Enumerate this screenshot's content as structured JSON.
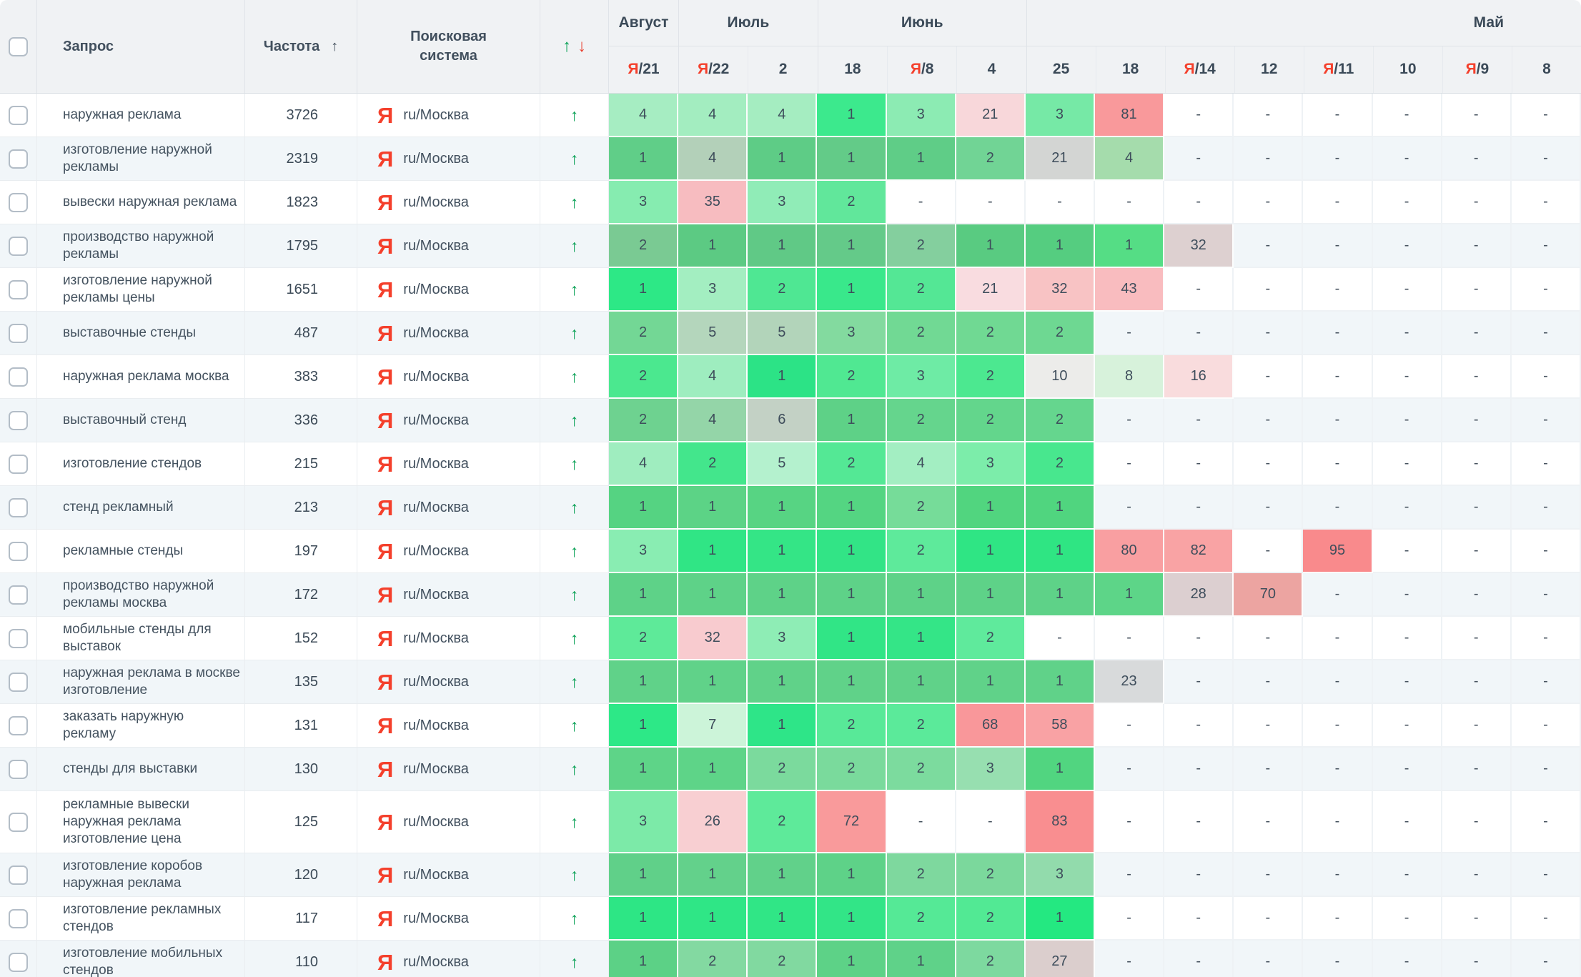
{
  "header": {
    "query": "Запрос",
    "frequency": "Частота",
    "freq_sort_icon": "↑",
    "engine": "Поисковая система",
    "trend_up_icon": "↑",
    "trend_down_icon": "↓"
  },
  "yandex_mark": "Я",
  "colors": {
    "yandex_red": "#f4402c",
    "trend_up_green": "#0aa156",
    "trend_down_red": "#e8402f",
    "header_bg": "#f0f2f4",
    "row_stripe": "#f1f6f9",
    "header_text": "#3b4a58",
    "cell_text": "#3e4d5b"
  },
  "months": [
    {
      "label": "Август",
      "dates": [
        {
          "day": "21",
          "ya": true
        }
      ]
    },
    {
      "label": "Июль",
      "dates": [
        {
          "day": "22",
          "ya": true
        },
        {
          "day": "2"
        }
      ]
    },
    {
      "label": "Июнь",
      "dates": [
        {
          "day": "18"
        },
        {
          "day": "8",
          "ya": true
        },
        {
          "day": "4"
        }
      ]
    },
    {
      "label": "Май",
      "align": "right",
      "dates": [
        {
          "day": "25"
        },
        {
          "day": "18"
        },
        {
          "day": "14",
          "ya": true
        },
        {
          "day": "12"
        },
        {
          "day": "11",
          "ya": true
        },
        {
          "day": "10"
        },
        {
          "day": "9",
          "ya": true
        },
        {
          "day": "8"
        }
      ]
    }
  ],
  "rows": [
    {
      "query": "наружная реклама",
      "frequency": "3726",
      "engine": "ru/Москва",
      "trend": "up",
      "cells": [
        [
          "4",
          "#a6edc2"
        ],
        [
          "4",
          "#a3edc0"
        ],
        [
          "4",
          "#a5edc1"
        ],
        [
          "1",
          "#3ce98d"
        ],
        [
          "3",
          "#8cebb3"
        ],
        [
          "21",
          "#f8d7da"
        ],
        [
          "3",
          "#76e9a6"
        ],
        [
          "81",
          "#f9999b"
        ],
        [
          "-"
        ],
        [
          "-"
        ],
        [
          "-"
        ],
        [
          "-"
        ],
        [
          "-"
        ],
        [
          "-"
        ]
      ]
    },
    {
      "query": "изготовление наружной рекламы",
      "frequency": "2319",
      "engine": "ru/Москва",
      "trend": "up",
      "cells": [
        [
          "1",
          "#60ce88"
        ],
        [
          "4",
          "#b3d0b9"
        ],
        [
          "1",
          "#5ecc86"
        ],
        [
          "1",
          "#63cb88"
        ],
        [
          "1",
          "#5fcd87"
        ],
        [
          "2",
          "#71d495"
        ],
        [
          "21",
          "#d3d5d3"
        ],
        [
          "4",
          "#a5dcac"
        ],
        [
          "-"
        ],
        [
          "-"
        ],
        [
          "-"
        ],
        [
          "-"
        ],
        [
          "-"
        ],
        [
          "-"
        ]
      ]
    },
    {
      "query": "вывески наружная реклама",
      "frequency": "1823",
      "engine": "ru/Москва",
      "trend": "up",
      "cells": [
        [
          "3",
          "#86ecb0"
        ],
        [
          "35",
          "#f7bcc0"
        ],
        [
          "3",
          "#90ecb7"
        ],
        [
          "2",
          "#61e79b"
        ],
        [
          "-"
        ],
        [
          "-"
        ],
        [
          "-"
        ],
        [
          "-"
        ],
        [
          "-"
        ],
        [
          "-"
        ],
        [
          "-"
        ],
        [
          "-"
        ],
        [
          "-"
        ],
        [
          "-"
        ]
      ]
    },
    {
      "query": "производство наружной рекламы",
      "frequency": "1795",
      "engine": "ru/Москва",
      "trend": "up",
      "cells": [
        [
          "2",
          "#7aca93"
        ],
        [
          "1",
          "#5cca83"
        ],
        [
          "1",
          "#60c986"
        ],
        [
          "1",
          "#64ca89"
        ],
        [
          "2",
          "#84cf9e"
        ],
        [
          "1",
          "#59cb81"
        ],
        [
          "1",
          "#55cd80"
        ],
        [
          "1",
          "#55dd85"
        ],
        [
          "32",
          "#ddd0d0"
        ],
        [
          "-"
        ],
        [
          "-"
        ],
        [
          "-"
        ],
        [
          "-"
        ],
        [
          "-"
        ]
      ]
    },
    {
      "query": "изготовление наружной рекламы цены",
      "frequency": "1651",
      "engine": "ru/Москва",
      "trend": "up",
      "cells": [
        [
          "1",
          "#2de886"
        ],
        [
          "3",
          "#a3eec1"
        ],
        [
          "2",
          "#4fe793"
        ],
        [
          "1",
          "#39e88b"
        ],
        [
          "2",
          "#54e795"
        ],
        [
          "21",
          "#f9dce0"
        ],
        [
          "32",
          "#f8c3c4"
        ],
        [
          "43",
          "#f9bcbf"
        ],
        [
          "-"
        ],
        [
          "-"
        ],
        [
          "-"
        ],
        [
          "-"
        ],
        [
          "-"
        ],
        [
          "-"
        ]
      ]
    },
    {
      "query": "выставочные стенды",
      "frequency": "487",
      "engine": "ru/Москва",
      "trend": "up",
      "cells": [
        [
          "2",
          "#73d795"
        ],
        [
          "5",
          "#b4d6bc"
        ],
        [
          "5",
          "#b2d4ba"
        ],
        [
          "3",
          "#83da9f"
        ],
        [
          "2",
          "#71d994"
        ],
        [
          "2",
          "#70d993"
        ],
        [
          "2",
          "#6ed892"
        ],
        [
          "-"
        ],
        [
          "-"
        ],
        [
          "-"
        ],
        [
          "-"
        ],
        [
          "-"
        ],
        [
          "-"
        ],
        [
          "-"
        ]
      ]
    },
    {
      "query": "наружная реклама москва",
      "frequency": "383",
      "engine": "ru/Москва",
      "trend": "up",
      "cells": [
        [
          "2",
          "#4be88f"
        ],
        [
          "4",
          "#9eedbf"
        ],
        [
          "1",
          "#2ce386"
        ],
        [
          "2",
          "#50e892"
        ],
        [
          "3",
          "#6eeba5"
        ],
        [
          "2",
          "#4ce890"
        ],
        [
          "10",
          "#ececea"
        ],
        [
          "8",
          "#d7f2db"
        ],
        [
          "16",
          "#f9dcdd"
        ],
        [
          "-"
        ],
        [
          "-"
        ],
        [
          "-"
        ],
        [
          "-"
        ],
        [
          "-"
        ]
      ]
    },
    {
      "query": "выставочный стенд",
      "frequency": "336",
      "engine": "ru/Москва",
      "trend": "up",
      "cells": [
        [
          "2",
          "#6ed290"
        ],
        [
          "4",
          "#94d5a8"
        ],
        [
          "6",
          "#c3d1c5"
        ],
        [
          "1",
          "#5ed187"
        ],
        [
          "2",
          "#65d58d"
        ],
        [
          "2",
          "#63d68c"
        ],
        [
          "2",
          "#65d68e"
        ],
        [
          "-"
        ],
        [
          "-"
        ],
        [
          "-"
        ],
        [
          "-"
        ],
        [
          "-"
        ],
        [
          "-"
        ],
        [
          "-"
        ]
      ]
    },
    {
      "query": "изготовление стендов",
      "frequency": "215",
      "engine": "ru/Москва",
      "trend": "up",
      "cells": [
        [
          "4",
          "#9fedbf"
        ],
        [
          "2",
          "#43e68c"
        ],
        [
          "5",
          "#b4f1ce"
        ],
        [
          "2",
          "#54e895"
        ],
        [
          "4",
          "#a3eec2"
        ],
        [
          "3",
          "#7cedaa"
        ],
        [
          "2",
          "#48e78e"
        ],
        [
          "-"
        ],
        [
          "-"
        ],
        [
          "-"
        ],
        [
          "-"
        ],
        [
          "-"
        ],
        [
          "-"
        ],
        [
          "-"
        ]
      ]
    },
    {
      "query": "стенд рекламный",
      "frequency": "213",
      "engine": "ru/Москва",
      "trend": "up",
      "cells": [
        [
          "1",
          "#55d382"
        ],
        [
          "1",
          "#5cd386"
        ],
        [
          "1",
          "#57d483"
        ],
        [
          "1",
          "#54d582"
        ],
        [
          "2",
          "#76dc99"
        ],
        [
          "1",
          "#51d57f"
        ],
        [
          "1",
          "#50d57f"
        ],
        [
          "-"
        ],
        [
          "-"
        ],
        [
          "-"
        ],
        [
          "-"
        ],
        [
          "-"
        ],
        [
          "-"
        ],
        [
          "-"
        ]
      ]
    },
    {
      "query": "рекламные стенды",
      "frequency": "197",
      "engine": "ru/Москва",
      "trend": "up",
      "cells": [
        [
          "3",
          "#89edb2"
        ],
        [
          "1",
          "#30e585"
        ],
        [
          "1",
          "#34e586"
        ],
        [
          "1",
          "#32e486"
        ],
        [
          "2",
          "#5eea9b"
        ],
        [
          "1",
          "#2fe584"
        ],
        [
          "1",
          "#2fe583"
        ],
        [
          "80",
          "#f99fa1"
        ],
        [
          "82",
          "#f9a3a4"
        ],
        [
          "-"
        ],
        [
          "95",
          "#f98a8c"
        ],
        [
          "-"
        ],
        [
          "-"
        ],
        [
          "-"
        ]
      ]
    },
    {
      "query": "производство наружной рекламы москва",
      "frequency": "172",
      "engine": "ru/Москва",
      "trend": "up",
      "cells": [
        [
          "1",
          "#5ed288"
        ],
        [
          "1",
          "#5ed288"
        ],
        [
          "1",
          "#5ed288"
        ],
        [
          "1",
          "#5ed288"
        ],
        [
          "1",
          "#5ed288"
        ],
        [
          "1",
          "#5ed288"
        ],
        [
          "1",
          "#5ed288"
        ],
        [
          "1",
          "#5dd588"
        ],
        [
          "28",
          "#dccfd0"
        ],
        [
          "70",
          "#eca4a1"
        ],
        [
          "-"
        ],
        [
          "-"
        ],
        [
          "-"
        ],
        [
          "-"
        ]
      ]
    },
    {
      "query": "мобильные стенды для выставок",
      "frequency": "152",
      "engine": "ru/Москва",
      "trend": "up",
      "cells": [
        [
          "2",
          "#5eea99"
        ],
        [
          "32",
          "#f8cbcf"
        ],
        [
          "3",
          "#8eedb5"
        ],
        [
          "1",
          "#31e586"
        ],
        [
          "1",
          "#34e587"
        ],
        [
          "2",
          "#5fea9c"
        ],
        [
          "-"
        ],
        [
          "-"
        ],
        [
          "-"
        ],
        [
          "-"
        ],
        [
          "-"
        ],
        [
          "-"
        ],
        [
          "-"
        ],
        [
          "-"
        ]
      ]
    },
    {
      "query": "наружная реклама в москве изготовление",
      "frequency": "135",
      "engine": "ru/Москва",
      "trend": "up",
      "cells": [
        [
          "1",
          "#60d289"
        ],
        [
          "1",
          "#60d289"
        ],
        [
          "1",
          "#60d289"
        ],
        [
          "1",
          "#60d289"
        ],
        [
          "1",
          "#60d289"
        ],
        [
          "1",
          "#60d289"
        ],
        [
          "1",
          "#60d289"
        ],
        [
          "23",
          "#d8dadb"
        ],
        [
          "-"
        ],
        [
          "-"
        ],
        [
          "-"
        ],
        [
          "-"
        ],
        [
          "-"
        ],
        [
          "-"
        ]
      ]
    },
    {
      "query": "заказать наружную рекламу",
      "frequency": "131",
      "engine": "ru/Москва",
      "trend": "up",
      "cells": [
        [
          "1",
          "#2de887"
        ],
        [
          "7",
          "#ccf4d9"
        ],
        [
          "1",
          "#2ee588"
        ],
        [
          "2",
          "#58e998"
        ],
        [
          "2",
          "#5bea9a"
        ],
        [
          "68",
          "#f9979a"
        ],
        [
          "58",
          "#f9a2a4"
        ],
        [
          "-"
        ],
        [
          "-"
        ],
        [
          "-"
        ],
        [
          "-"
        ],
        [
          "-"
        ],
        [
          "-"
        ],
        [
          "-"
        ]
      ]
    },
    {
      "query": "стенды для выставки",
      "frequency": "130",
      "engine": "ru/Москва",
      "trend": "up",
      "cells": [
        [
          "1",
          "#5ed488"
        ],
        [
          "1",
          "#5ed488"
        ],
        [
          "2",
          "#7bda9d"
        ],
        [
          "2",
          "#7ada9c"
        ],
        [
          "2",
          "#7cdb9e"
        ],
        [
          "3",
          "#97dfb0"
        ],
        [
          "1",
          "#51d580"
        ],
        [
          "-"
        ],
        [
          "-"
        ],
        [
          "-"
        ],
        [
          "-"
        ],
        [
          "-"
        ],
        [
          "-"
        ],
        [
          "-"
        ]
      ]
    },
    {
      "query": "рекламные вывески наружная реклама изготовление цена",
      "frequency": "125",
      "engine": "ru/Москва",
      "trend": "up",
      "tall": true,
      "cells": [
        [
          "3",
          "#7ceaa8"
        ],
        [
          "26",
          "#f8cfd2"
        ],
        [
          "2",
          "#5eea9a"
        ],
        [
          "72",
          "#f99a9b"
        ],
        [
          "-"
        ],
        [
          "-"
        ],
        [
          "83",
          "#f98e90"
        ],
        [
          "-"
        ],
        [
          "-"
        ],
        [
          "-"
        ],
        [
          "-"
        ],
        [
          "-"
        ],
        [
          "-"
        ],
        [
          "-"
        ]
      ]
    },
    {
      "query": "изготовление коробов наружная реклама",
      "frequency": "120",
      "engine": "ru/Москва",
      "trend": "up",
      "cells": [
        [
          "1",
          "#60d089"
        ],
        [
          "1",
          "#63d18b"
        ],
        [
          "1",
          "#61d18a"
        ],
        [
          "1",
          "#5ed288"
        ],
        [
          "2",
          "#7ed89e"
        ],
        [
          "2",
          "#7bd89c"
        ],
        [
          "3",
          "#92dbac"
        ],
        [
          "-"
        ],
        [
          "-"
        ],
        [
          "-"
        ],
        [
          "-"
        ],
        [
          "-"
        ],
        [
          "-"
        ],
        [
          "-"
        ]
      ]
    },
    {
      "query": "изготовление рекламных стендов",
      "frequency": "117",
      "engine": "ru/Москва",
      "trend": "up",
      "cells": [
        [
          "1",
          "#2de685"
        ],
        [
          "1",
          "#2fe686"
        ],
        [
          "1",
          "#30e686"
        ],
        [
          "1",
          "#32e587"
        ],
        [
          "2",
          "#55e996"
        ],
        [
          "2",
          "#52e994"
        ],
        [
          "1",
          "#24e881"
        ],
        [
          "-"
        ],
        [
          "-"
        ],
        [
          "-"
        ],
        [
          "-"
        ],
        [
          "-"
        ],
        [
          "-"
        ],
        [
          "-"
        ]
      ]
    },
    {
      "query": "изготовление мобильных стендов",
      "frequency": "110",
      "engine": "ru/Москва",
      "trend": "up",
      "cells": [
        [
          "1",
          "#5cd186"
        ],
        [
          "2",
          "#83d9a1"
        ],
        [
          "2",
          "#81d9a0"
        ],
        [
          "1",
          "#5dd287"
        ],
        [
          "1",
          "#5fd289"
        ],
        [
          "2",
          "#7dd99f"
        ],
        [
          "27",
          "#dbcecd"
        ],
        [
          "-"
        ],
        [
          "-"
        ],
        [
          "-"
        ],
        [
          "-"
        ],
        [
          "-"
        ],
        [
          "-"
        ],
        [
          "-"
        ]
      ]
    }
  ]
}
